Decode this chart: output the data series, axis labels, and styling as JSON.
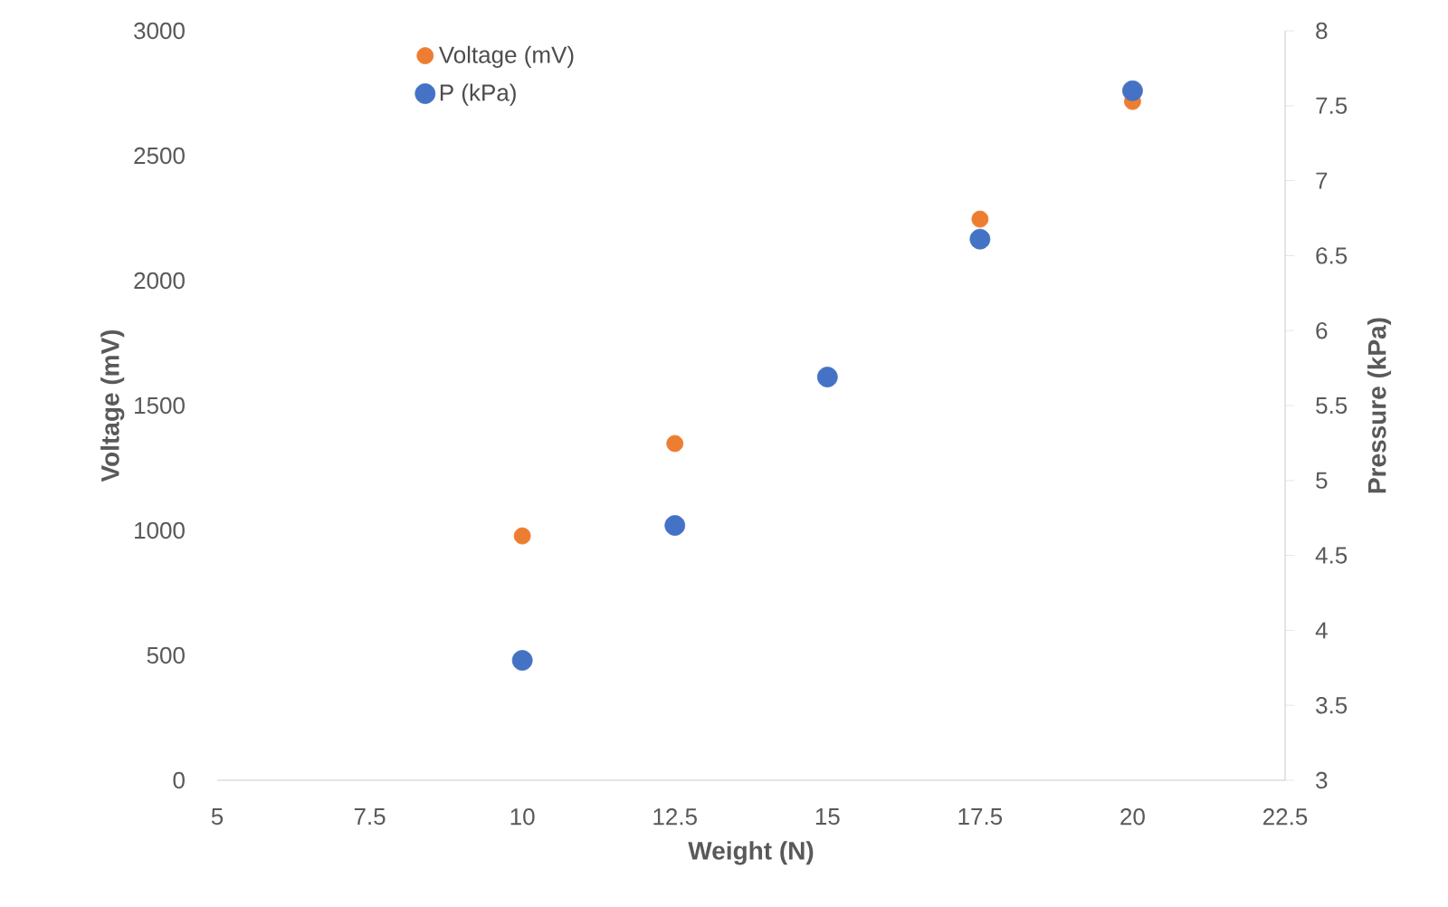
{
  "chart_data": {
    "type": "scatter",
    "xlabel": "Weight (N)",
    "ylabel": "Voltage (mV)",
    "y2label": "Pressure (kPa)",
    "xlim": [
      5,
      22.5
    ],
    "xticks": [
      5,
      7.5,
      10,
      12.5,
      15,
      17.5,
      20,
      22.5
    ],
    "ylim": [
      0,
      3000
    ],
    "yticks": [
      0,
      500,
      1000,
      1500,
      2000,
      2500,
      3000
    ],
    "y2lim": [
      3,
      8
    ],
    "y2ticks": [
      3,
      3.5,
      4,
      4.5,
      5,
      5.5,
      6,
      6.5,
      7,
      7.5,
      8
    ],
    "marker": "circle",
    "legend": "top left",
    "grid": false,
    "series": [
      {
        "name": "Voltage (mV)",
        "color": "#ed7d31",
        "x": [
          10,
          12.5,
          17.5,
          20
        ],
        "values": [
          978,
          1348,
          2246,
          2717
        ]
      },
      {
        "name": "P (kPa)",
        "color": "#4472c4",
        "axis": "y2",
        "x": [
          10,
          12.5,
          15,
          17.5,
          20
        ],
        "values": [
          3.8,
          4.7,
          5.69,
          6.61,
          7.6
        ]
      }
    ]
  }
}
